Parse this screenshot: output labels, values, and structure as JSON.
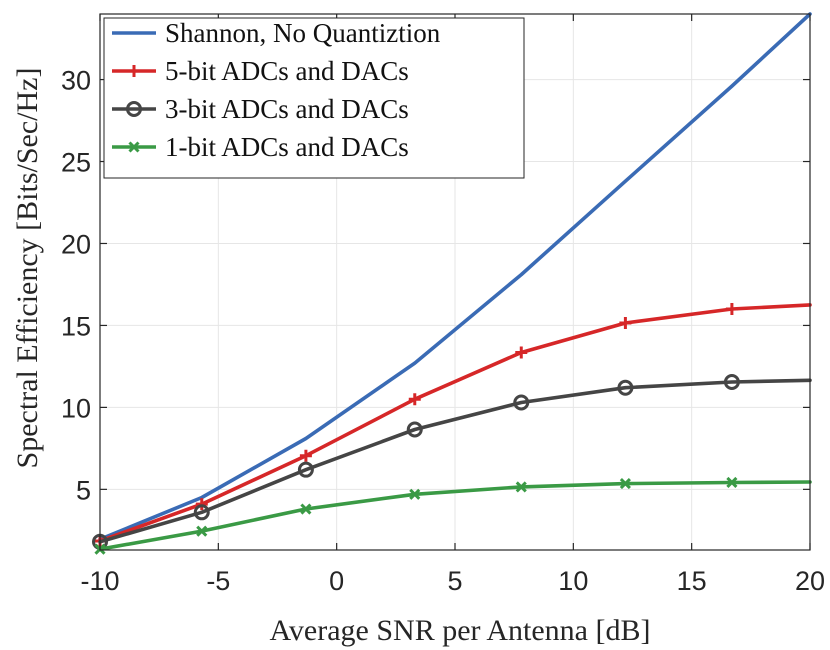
{
  "chart_data": {
    "type": "line",
    "title": "",
    "xlabel": "Average SNR per Antenna [dB]",
    "ylabel": "Spectral Efficiency [Bits/Sec/Hz]",
    "xlim": [
      -10,
      20
    ],
    "ylim": [
      1.3,
      34
    ],
    "xticks": [
      -10,
      -5,
      0,
      5,
      10,
      15,
      20
    ],
    "xtick_labels": [
      "-10",
      "-5",
      "0",
      "5",
      "10",
      "15",
      "20"
    ],
    "yticks": [
      5,
      10,
      15,
      20,
      25,
      30
    ],
    "ytick_labels": [
      "5",
      "10",
      "15",
      "20",
      "25",
      "30"
    ],
    "grid": true,
    "legend_position": "top-left",
    "series": [
      {
        "name": "Shannon, No Quantiztion",
        "color": "#3a6bb5",
        "marker": "none",
        "x": [
          -10,
          -5.7,
          -1.3,
          3.3,
          7.8,
          12.2,
          16.7,
          20
        ],
        "y": [
          1.95,
          4.5,
          8.1,
          12.7,
          18.1,
          23.8,
          29.6,
          34
        ]
      },
      {
        "name": "5-bit ADCs and DACs",
        "color": "#d62728",
        "marker": "plus",
        "x": [
          -10,
          -5.7,
          -1.3,
          3.3,
          7.8,
          12.2,
          16.7,
          20
        ],
        "y": [
          1.85,
          4.1,
          7.05,
          10.5,
          13.35,
          15.15,
          16.0,
          16.25
        ]
      },
      {
        "name": "3-bit ADCs and DACs",
        "color": "#454545",
        "marker": "circle",
        "x": [
          -10,
          -5.7,
          -1.3,
          3.3,
          7.8,
          12.2,
          16.7,
          20
        ],
        "y": [
          1.8,
          3.6,
          6.2,
          8.65,
          10.3,
          11.2,
          11.55,
          11.65
        ]
      },
      {
        "name": "1-bit ADCs and DACs",
        "color": "#3a9a45",
        "marker": "x",
        "x": [
          -10,
          -5.7,
          -1.3,
          3.3,
          7.8,
          12.2,
          16.7,
          20
        ],
        "y": [
          1.35,
          2.45,
          3.8,
          4.7,
          5.15,
          5.35,
          5.42,
          5.45
        ]
      }
    ]
  }
}
